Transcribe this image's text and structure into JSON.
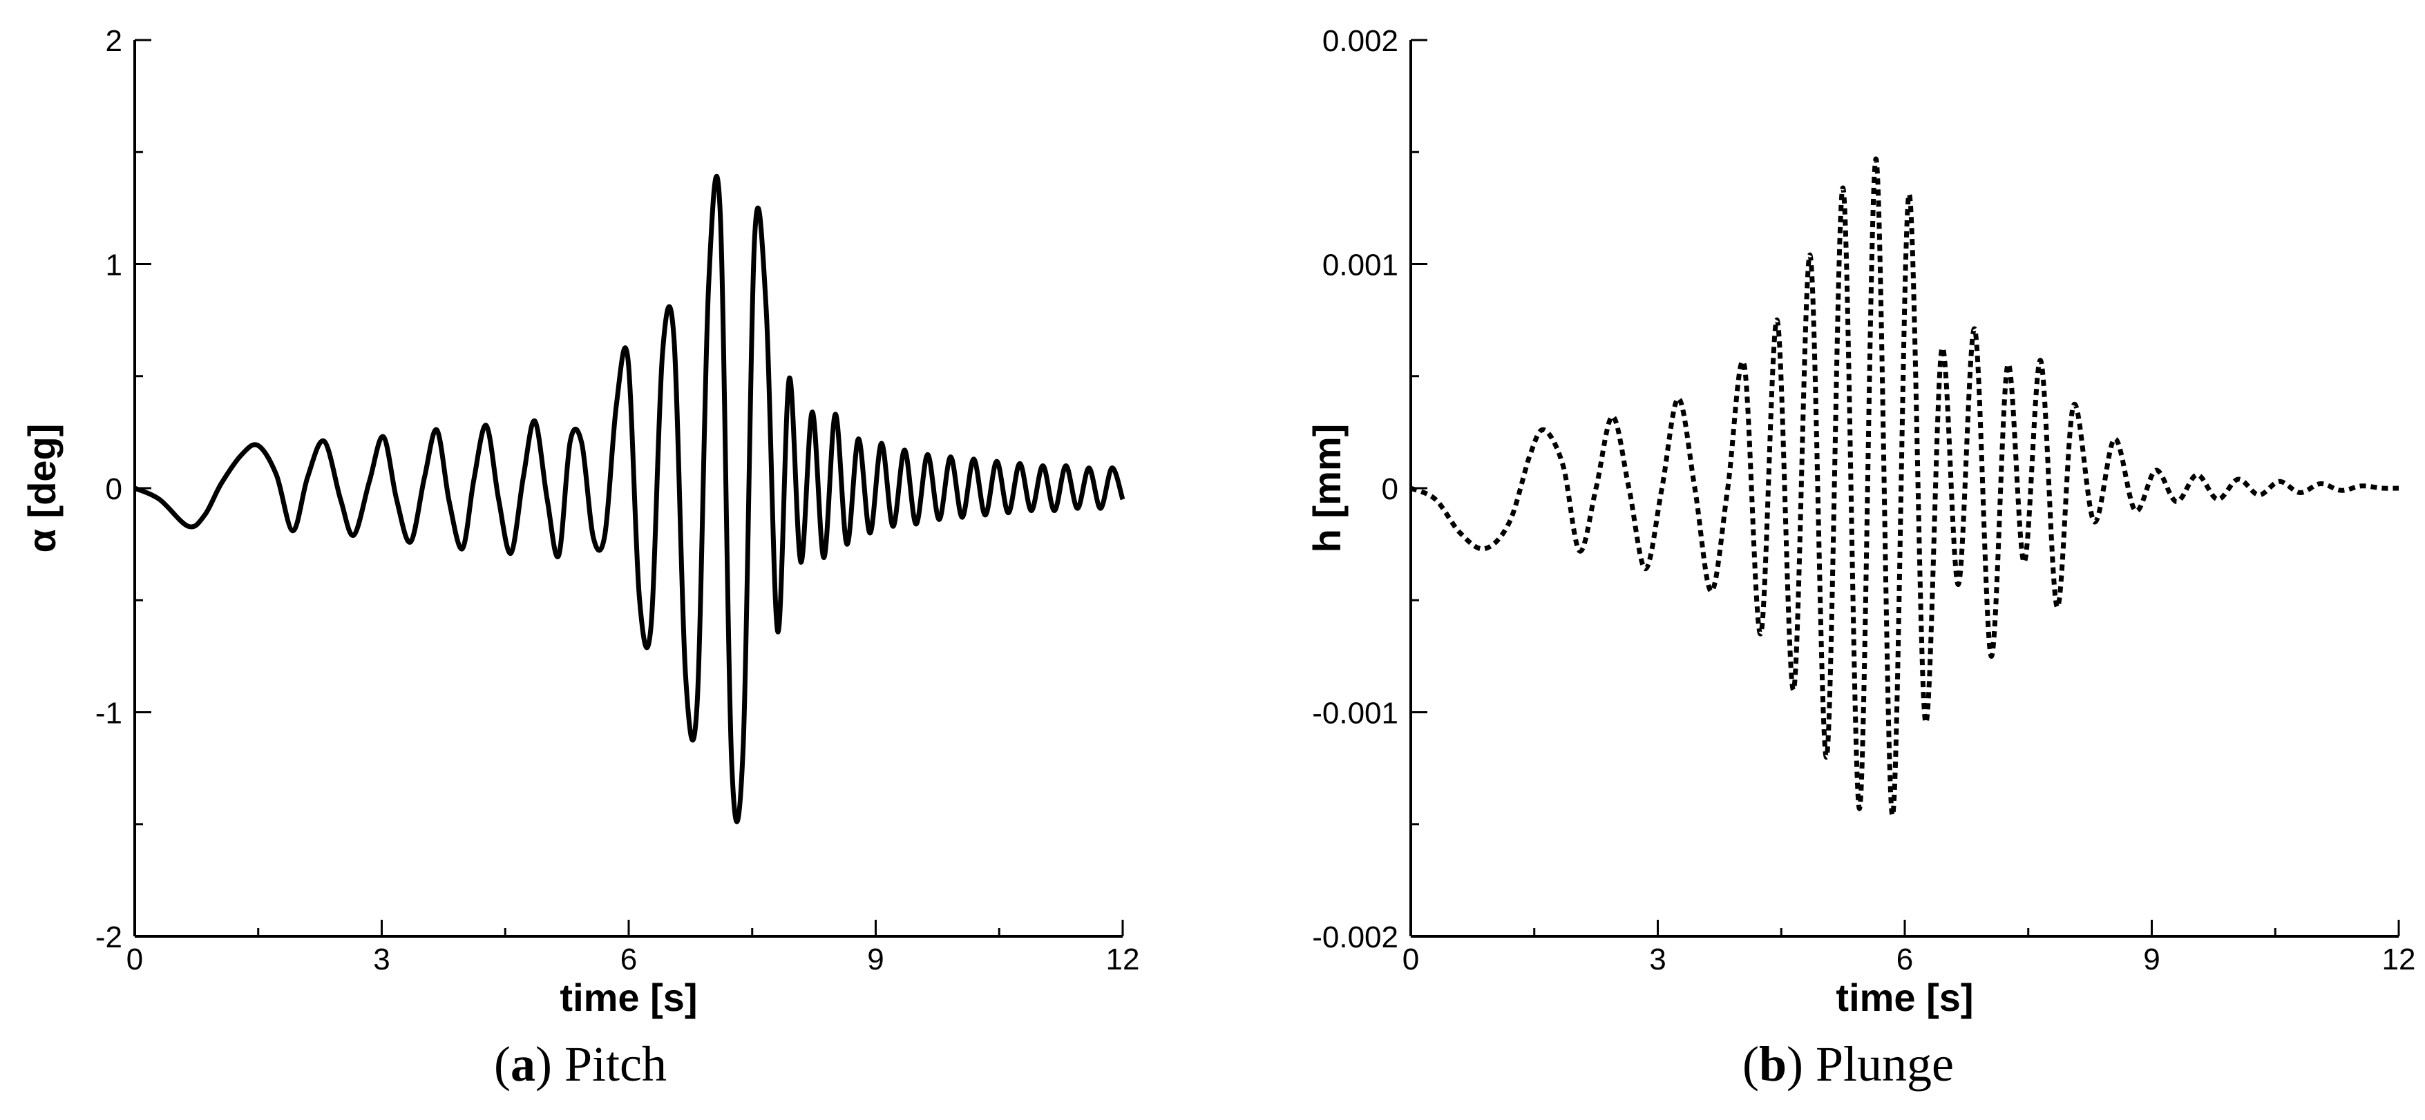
{
  "captions": [
    {
      "letter": "a",
      "text": "Pitch"
    },
    {
      "letter": "b",
      "text": "Plunge"
    }
  ],
  "chart_data": [
    {
      "type": "line",
      "title": "",
      "xlabel": "time [s]",
      "ylabel": "α [deg]",
      "xlim": [
        0,
        12
      ],
      "ylim": [
        -2,
        2
      ],
      "xticks": [
        0,
        3,
        6,
        9,
        12
      ],
      "yticks": [
        -2,
        -1,
        0,
        1,
        2
      ],
      "xtick_labels": [
        "0",
        "3",
        "6",
        "9",
        "12"
      ],
      "ytick_labels": [
        "-2",
        "-1",
        "0",
        "1",
        "2"
      ],
      "grid": false,
      "line_style": "solid",
      "color": "#000000",
      "series": [
        {
          "x": [
            0.0,
            0.3,
            0.65,
            0.85,
            1.05,
            1.3,
            1.5,
            1.72,
            1.92,
            2.1,
            2.3,
            2.5,
            2.66,
            2.85,
            3.02,
            3.18,
            3.35,
            3.52,
            3.67,
            3.82,
            3.98,
            4.12,
            4.27,
            4.42,
            4.57,
            4.72,
            4.86,
            5.01,
            5.15,
            5.29,
            5.43,
            5.57,
            5.71,
            5.85,
            5.99,
            6.13,
            6.27,
            6.41,
            6.55,
            6.69,
            6.83,
            6.97,
            7.11,
            7.25,
            7.39,
            7.53,
            7.67,
            7.81,
            7.95,
            8.09,
            8.23,
            8.37,
            8.51,
            8.65,
            8.79,
            8.93,
            9.07,
            9.21,
            9.35,
            9.49,
            9.63,
            9.77,
            9.91,
            10.05,
            10.19,
            10.33,
            10.47,
            10.61,
            10.75,
            10.89,
            11.03,
            11.17,
            11.31,
            11.45,
            11.59,
            11.73,
            11.87,
            12.0
          ],
          "y": [
            0.0,
            -0.05,
            -0.17,
            -0.12,
            0.02,
            0.15,
            0.19,
            0.06,
            -0.19,
            0.05,
            0.21,
            -0.05,
            -0.21,
            0.03,
            0.23,
            -0.05,
            -0.24,
            0.05,
            0.26,
            -0.06,
            -0.27,
            0.04,
            0.28,
            -0.05,
            -0.29,
            0.05,
            0.3,
            -0.05,
            -0.3,
            0.21,
            0.2,
            -0.22,
            -0.21,
            0.37,
            0.58,
            -0.49,
            -0.62,
            0.6,
            0.67,
            -0.83,
            -0.97,
            0.9,
            1.24,
            -1.22,
            -1.16,
            1.12,
            0.8,
            -0.64,
            0.49,
            -0.33,
            0.34,
            -0.31,
            0.33,
            -0.25,
            0.22,
            -0.2,
            0.2,
            -0.17,
            0.17,
            -0.16,
            0.15,
            -0.14,
            0.14,
            -0.13,
            0.13,
            -0.12,
            0.12,
            -0.11,
            0.11,
            -0.1,
            0.1,
            -0.1,
            0.1,
            -0.09,
            0.09,
            -0.09,
            0.09,
            -0.05
          ]
        }
      ]
    },
    {
      "type": "line",
      "title": "",
      "xlabel": "time [s]",
      "ylabel": "h [mm]",
      "xlim": [
        0,
        12
      ],
      "ylim": [
        -0.002,
        0.002
      ],
      "xticks": [
        0,
        3,
        6,
        9,
        12
      ],
      "yticks": [
        -0.002,
        -0.001,
        0,
        0.001,
        0.002
      ],
      "xtick_labels": [
        "0",
        "3",
        "6",
        "9",
        "12"
      ],
      "ytick_labels": [
        "-0.002",
        "-0.001",
        "0",
        "0.001",
        "0.002"
      ],
      "grid": false,
      "line_style": "dotted",
      "color": "#000000",
      "series": [
        {
          "x": [
            0.0,
            0.3,
            0.6,
            0.9,
            1.2,
            1.45,
            1.62,
            1.85,
            2.05,
            2.25,
            2.45,
            2.65,
            2.85,
            3.05,
            3.25,
            3.45,
            3.65,
            3.85,
            4.05,
            4.25,
            4.45,
            4.65,
            4.85,
            5.05,
            5.25,
            5.45,
            5.65,
            5.85,
            6.05,
            6.25,
            6.45,
            6.65,
            6.85,
            7.05,
            7.25,
            7.45,
            7.65,
            7.85,
            8.05,
            8.3,
            8.55,
            8.8,
            9.05,
            9.3,
            9.55,
            9.8,
            10.05,
            10.3,
            10.55,
            10.8,
            11.05,
            11.3,
            11.55,
            11.8,
            12.0
          ],
          "y": [
            0.0,
            -5e-05,
            -0.0002,
            -0.00027,
            -0.00015,
            0.00015,
            0.00026,
            0.0001,
            -0.00028,
            0.0,
            0.00032,
            0.0,
            -0.00036,
            0.0,
            0.0004,
            0.0,
            -0.00046,
            0.0,
            0.00055,
            -0.00065,
            0.00075,
            -0.0009,
            0.00104,
            -0.0012,
            0.00134,
            -0.00143,
            0.00147,
            -0.00146,
            0.00131,
            -0.00104,
            0.00062,
            -0.00043,
            0.00071,
            -0.00075,
            0.00055,
            -0.00033,
            0.00057,
            -0.00053,
            0.00037,
            -0.00015,
            0.00022,
            -0.0001,
            8e-05,
            -6e-05,
            6e-05,
            -5e-05,
            4e-05,
            -3e-05,
            3e-05,
            -2e-05,
            2e-05,
            -1e-05,
            1e-05,
            0.0,
            0.0
          ]
        }
      ]
    }
  ]
}
